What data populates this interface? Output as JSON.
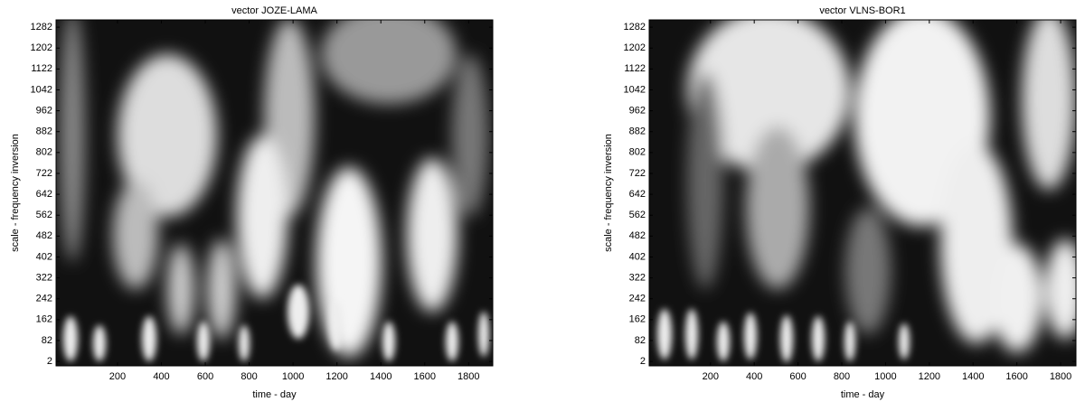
{
  "chart_data": [
    {
      "type": "heatmap",
      "title": "vector JOZE-LAMA",
      "x_label": "time - day",
      "y_label": "scale -  frequency inversion",
      "colormap": "gray",
      "xlim": [
        -80,
        1910
      ],
      "ylim": [
        -15,
        1310
      ],
      "xticks": [
        200,
        400,
        600,
        800,
        1000,
        1200,
        1400,
        1600,
        1800
      ],
      "yticks": [
        2,
        82,
        162,
        242,
        322,
        402,
        482,
        562,
        642,
        722,
        802,
        882,
        962,
        1042,
        1122,
        1202,
        1282
      ]
    },
    {
      "type": "heatmap",
      "title": "vector VLNS-BOR1",
      "x_label": "time - day",
      "y_label": "scale -  frequency inversion",
      "colormap": "gray",
      "xlim": [
        -80,
        1870
      ],
      "ylim": [
        -15,
        1310
      ],
      "xticks": [
        200,
        400,
        600,
        800,
        1000,
        1200,
        1400,
        1600,
        1800
      ],
      "yticks": [
        2,
        82,
        162,
        242,
        322,
        402,
        482,
        562,
        642,
        722,
        802,
        882,
        962,
        1042,
        1122,
        1202,
        1282
      ]
    }
  ]
}
